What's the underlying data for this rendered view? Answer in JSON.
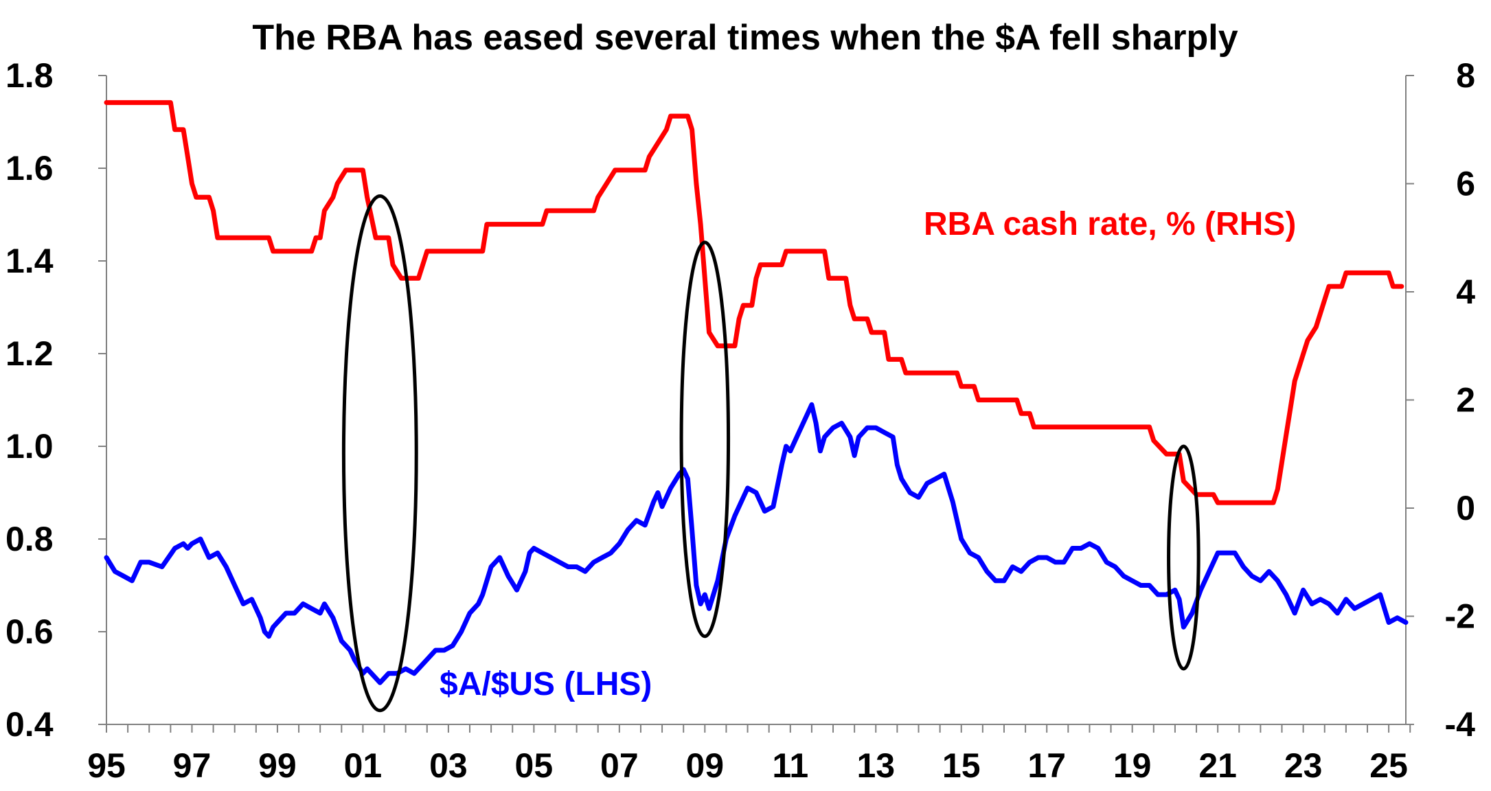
{
  "chart_data": {
    "type": "line",
    "title": "The RBA has eased several times when the $A fell sharply",
    "x_range": [
      1995,
      2025.4
    ],
    "x_ticks": [
      "95",
      "97",
      "99",
      "01",
      "03",
      "05",
      "07",
      "09",
      "11",
      "13",
      "15",
      "17",
      "19",
      "21",
      "23",
      "25"
    ],
    "y_left": {
      "range": [
        0.4,
        1.8
      ],
      "ticks": [
        "0.4",
        "0.6",
        "0.8",
        "1.0",
        "1.2",
        "1.4",
        "1.6",
        "1.8"
      ]
    },
    "y_right": {
      "range": [
        -4,
        8
      ],
      "ticks": [
        "-4",
        "-2",
        "0",
        "2",
        "4",
        "6",
        "8"
      ]
    },
    "colors": {
      "aud": "#0000ff",
      "rate": "#ff0000",
      "ellipse": "#000000"
    },
    "series": [
      {
        "name": "$A/$US (LHS)",
        "axis": "left",
        "color": "#0000ff",
        "points": [
          [
            1995.0,
            0.76
          ],
          [
            1995.2,
            0.73
          ],
          [
            1995.4,
            0.72
          ],
          [
            1995.6,
            0.71
          ],
          [
            1995.8,
            0.75
          ],
          [
            1996.0,
            0.75
          ],
          [
            1996.3,
            0.74
          ],
          [
            1996.6,
            0.78
          ],
          [
            1996.8,
            0.79
          ],
          [
            1996.9,
            0.78
          ],
          [
            1997.0,
            0.79
          ],
          [
            1997.2,
            0.8
          ],
          [
            1997.3,
            0.78
          ],
          [
            1997.4,
            0.76
          ],
          [
            1997.6,
            0.77
          ],
          [
            1997.8,
            0.74
          ],
          [
            1998.0,
            0.7
          ],
          [
            1998.2,
            0.66
          ],
          [
            1998.4,
            0.67
          ],
          [
            1998.6,
            0.63
          ],
          [
            1998.7,
            0.6
          ],
          [
            1998.8,
            0.59
          ],
          [
            1998.9,
            0.61
          ],
          [
            1999.0,
            0.62
          ],
          [
            1999.2,
            0.64
          ],
          [
            1999.4,
            0.64
          ],
          [
            1999.6,
            0.66
          ],
          [
            1999.8,
            0.65
          ],
          [
            2000.0,
            0.64
          ],
          [
            2000.1,
            0.66
          ],
          [
            2000.3,
            0.63
          ],
          [
            2000.5,
            0.58
          ],
          [
            2000.7,
            0.56
          ],
          [
            2000.8,
            0.54
          ],
          [
            2001.0,
            0.51
          ],
          [
            2001.1,
            0.52
          ],
          [
            2001.3,
            0.5
          ],
          [
            2001.4,
            0.49
          ],
          [
            2001.6,
            0.51
          ],
          [
            2001.8,
            0.51
          ],
          [
            2002.0,
            0.52
          ],
          [
            2002.2,
            0.51
          ],
          [
            2002.5,
            0.54
          ],
          [
            2002.7,
            0.56
          ],
          [
            2002.9,
            0.56
          ],
          [
            2003.1,
            0.57
          ],
          [
            2003.3,
            0.6
          ],
          [
            2003.5,
            0.64
          ],
          [
            2003.7,
            0.66
          ],
          [
            2003.8,
            0.68
          ],
          [
            2004.0,
            0.74
          ],
          [
            2004.2,
            0.76
          ],
          [
            2004.4,
            0.72
          ],
          [
            2004.6,
            0.69
          ],
          [
            2004.8,
            0.73
          ],
          [
            2004.9,
            0.77
          ],
          [
            2005.0,
            0.78
          ],
          [
            2005.2,
            0.77
          ],
          [
            2005.4,
            0.76
          ],
          [
            2005.6,
            0.75
          ],
          [
            2005.8,
            0.74
          ],
          [
            2006.0,
            0.74
          ],
          [
            2006.2,
            0.73
          ],
          [
            2006.4,
            0.75
          ],
          [
            2006.6,
            0.76
          ],
          [
            2006.8,
            0.77
          ],
          [
            2007.0,
            0.79
          ],
          [
            2007.2,
            0.82
          ],
          [
            2007.4,
            0.84
          ],
          [
            2007.6,
            0.83
          ],
          [
            2007.8,
            0.88
          ],
          [
            2007.9,
            0.9
          ],
          [
            2008.0,
            0.87
          ],
          [
            2008.2,
            0.91
          ],
          [
            2008.4,
            0.94
          ],
          [
            2008.5,
            0.95
          ],
          [
            2008.6,
            0.93
          ],
          [
            2008.7,
            0.82
          ],
          [
            2008.8,
            0.7
          ],
          [
            2008.9,
            0.66
          ],
          [
            2009.0,
            0.68
          ],
          [
            2009.1,
            0.65
          ],
          [
            2009.3,
            0.71
          ],
          [
            2009.5,
            0.8
          ],
          [
            2009.7,
            0.85
          ],
          [
            2009.9,
            0.89
          ],
          [
            2010.0,
            0.91
          ],
          [
            2010.2,
            0.9
          ],
          [
            2010.4,
            0.86
          ],
          [
            2010.6,
            0.87
          ],
          [
            2010.8,
            0.96
          ],
          [
            2010.9,
            1.0
          ],
          [
            2011.0,
            0.99
          ],
          [
            2011.2,
            1.03
          ],
          [
            2011.4,
            1.07
          ],
          [
            2011.5,
            1.09
          ],
          [
            2011.6,
            1.05
          ],
          [
            2011.7,
            0.99
          ],
          [
            2011.8,
            1.02
          ],
          [
            2012.0,
            1.04
          ],
          [
            2012.2,
            1.05
          ],
          [
            2012.4,
            1.02
          ],
          [
            2012.5,
            0.98
          ],
          [
            2012.6,
            1.02
          ],
          [
            2012.8,
            1.04
          ],
          [
            2013.0,
            1.04
          ],
          [
            2013.2,
            1.03
          ],
          [
            2013.4,
            1.02
          ],
          [
            2013.5,
            0.96
          ],
          [
            2013.6,
            0.93
          ],
          [
            2013.8,
            0.9
          ],
          [
            2014.0,
            0.89
          ],
          [
            2014.2,
            0.92
          ],
          [
            2014.4,
            0.93
          ],
          [
            2014.6,
            0.94
          ],
          [
            2014.8,
            0.88
          ],
          [
            2015.0,
            0.8
          ],
          [
            2015.2,
            0.77
          ],
          [
            2015.4,
            0.76
          ],
          [
            2015.6,
            0.73
          ],
          [
            2015.8,
            0.71
          ],
          [
            2016.0,
            0.71
          ],
          [
            2016.2,
            0.74
          ],
          [
            2016.4,
            0.73
          ],
          [
            2016.6,
            0.75
          ],
          [
            2016.8,
            0.76
          ],
          [
            2017.0,
            0.76
          ],
          [
            2017.2,
            0.75
          ],
          [
            2017.4,
            0.75
          ],
          [
            2017.6,
            0.78
          ],
          [
            2017.8,
            0.78
          ],
          [
            2018.0,
            0.79
          ],
          [
            2018.2,
            0.78
          ],
          [
            2018.4,
            0.75
          ],
          [
            2018.6,
            0.74
          ],
          [
            2018.8,
            0.72
          ],
          [
            2019.0,
            0.71
          ],
          [
            2019.2,
            0.7
          ],
          [
            2019.4,
            0.7
          ],
          [
            2019.6,
            0.68
          ],
          [
            2019.8,
            0.68
          ],
          [
            2020.0,
            0.69
          ],
          [
            2020.1,
            0.67
          ],
          [
            2020.2,
            0.61
          ],
          [
            2020.4,
            0.64
          ],
          [
            2020.6,
            0.69
          ],
          [
            2020.8,
            0.73
          ],
          [
            2021.0,
            0.77
          ],
          [
            2021.2,
            0.77
          ],
          [
            2021.4,
            0.77
          ],
          [
            2021.6,
            0.74
          ],
          [
            2021.8,
            0.72
          ],
          [
            2022.0,
            0.71
          ],
          [
            2022.2,
            0.73
          ],
          [
            2022.4,
            0.71
          ],
          [
            2022.6,
            0.68
          ],
          [
            2022.8,
            0.64
          ],
          [
            2023.0,
            0.69
          ],
          [
            2023.2,
            0.66
          ],
          [
            2023.4,
            0.67
          ],
          [
            2023.6,
            0.66
          ],
          [
            2023.8,
            0.64
          ],
          [
            2024.0,
            0.67
          ],
          [
            2024.2,
            0.65
          ],
          [
            2024.4,
            0.66
          ],
          [
            2024.6,
            0.67
          ],
          [
            2024.8,
            0.68
          ],
          [
            2024.9,
            0.65
          ],
          [
            2025.0,
            0.62
          ],
          [
            2025.2,
            0.63
          ],
          [
            2025.4,
            0.62
          ]
        ]
      },
      {
        "name": "RBA cash rate, % (RHS)",
        "axis": "right",
        "color": "#ff0000",
        "points": [
          [
            1995.0,
            7.5
          ],
          [
            1996.5,
            7.5
          ],
          [
            1996.6,
            7.0
          ],
          [
            1996.8,
            7.0
          ],
          [
            1996.9,
            6.5
          ],
          [
            1997.0,
            6.0
          ],
          [
            1997.1,
            5.75
          ],
          [
            1997.4,
            5.75
          ],
          [
            1997.5,
            5.5
          ],
          [
            1997.6,
            5.0
          ],
          [
            1998.8,
            5.0
          ],
          [
            1998.9,
            4.75
          ],
          [
            1999.8,
            4.75
          ],
          [
            1999.9,
            5.0
          ],
          [
            2000.0,
            5.0
          ],
          [
            2000.1,
            5.5
          ],
          [
            2000.3,
            5.75
          ],
          [
            2000.4,
            6.0
          ],
          [
            2000.6,
            6.25
          ],
          [
            2001.0,
            6.25
          ],
          [
            2001.1,
            5.75
          ],
          [
            2001.3,
            5.0
          ],
          [
            2001.6,
            5.0
          ],
          [
            2001.7,
            4.5
          ],
          [
            2001.9,
            4.25
          ],
          [
            2002.3,
            4.25
          ],
          [
            2002.4,
            4.5
          ],
          [
            2002.5,
            4.75
          ],
          [
            2003.8,
            4.75
          ],
          [
            2003.9,
            5.25
          ],
          [
            2005.2,
            5.25
          ],
          [
            2005.3,
            5.5
          ],
          [
            2006.4,
            5.5
          ],
          [
            2006.5,
            5.75
          ],
          [
            2006.7,
            6.0
          ],
          [
            2006.9,
            6.25
          ],
          [
            2007.6,
            6.25
          ],
          [
            2007.7,
            6.5
          ],
          [
            2007.9,
            6.75
          ],
          [
            2008.1,
            7.0
          ],
          [
            2008.2,
            7.25
          ],
          [
            2008.6,
            7.25
          ],
          [
            2008.7,
            7.0
          ],
          [
            2008.8,
            6.0
          ],
          [
            2008.9,
            5.25
          ],
          [
            2009.0,
            4.25
          ],
          [
            2009.1,
            3.25
          ],
          [
            2009.3,
            3.0
          ],
          [
            2009.7,
            3.0
          ],
          [
            2009.8,
            3.5
          ],
          [
            2009.9,
            3.75
          ],
          [
            2010.1,
            3.75
          ],
          [
            2010.2,
            4.25
          ],
          [
            2010.3,
            4.5
          ],
          [
            2010.8,
            4.5
          ],
          [
            2010.9,
            4.75
          ],
          [
            2011.8,
            4.75
          ],
          [
            2011.9,
            4.25
          ],
          [
            2012.3,
            4.25
          ],
          [
            2012.4,
            3.75
          ],
          [
            2012.5,
            3.5
          ],
          [
            2012.8,
            3.5
          ],
          [
            2012.9,
            3.25
          ],
          [
            2013.2,
            3.25
          ],
          [
            2013.3,
            2.75
          ],
          [
            2013.6,
            2.75
          ],
          [
            2013.7,
            2.5
          ],
          [
            2014.9,
            2.5
          ],
          [
            2015.0,
            2.25
          ],
          [
            2015.3,
            2.25
          ],
          [
            2015.4,
            2.0
          ],
          [
            2016.3,
            2.0
          ],
          [
            2016.4,
            1.75
          ],
          [
            2016.6,
            1.75
          ],
          [
            2016.7,
            1.5
          ],
          [
            2019.4,
            1.5
          ],
          [
            2019.5,
            1.25
          ],
          [
            2019.8,
            1.0
          ],
          [
            2020.1,
            1.0
          ],
          [
            2020.2,
            0.5
          ],
          [
            2020.5,
            0.25
          ],
          [
            2020.9,
            0.25
          ],
          [
            2021.0,
            0.1
          ],
          [
            2022.3,
            0.1
          ],
          [
            2022.4,
            0.35
          ],
          [
            2022.5,
            0.85
          ],
          [
            2022.6,
            1.35
          ],
          [
            2022.7,
            1.85
          ],
          [
            2022.8,
            2.35
          ],
          [
            2023.0,
            2.85
          ],
          [
            2023.1,
            3.1
          ],
          [
            2023.3,
            3.35
          ],
          [
            2023.4,
            3.6
          ],
          [
            2023.5,
            3.85
          ],
          [
            2023.6,
            4.1
          ],
          [
            2023.9,
            4.1
          ],
          [
            2024.0,
            4.35
          ],
          [
            2025.0,
            4.35
          ],
          [
            2025.1,
            4.1
          ],
          [
            2025.3,
            4.1
          ]
        ]
      }
    ],
    "annotations": {
      "aud_label": "$A/$US (LHS)",
      "rate_label": "RBA cash rate, % (RHS)"
    },
    "ellipses": [
      {
        "x_center": 2001.4,
        "x_half": 0.85,
        "y_top": 1.54,
        "y_bottom": 0.43
      },
      {
        "x_center": 2009.0,
        "x_half": 0.55,
        "y_top": 1.44,
        "y_bottom": 0.59
      },
      {
        "x_center": 2020.2,
        "x_half": 0.35,
        "y_top": 1.0,
        "y_bottom": 0.52
      }
    ],
    "grid": false,
    "legend": "none"
  }
}
